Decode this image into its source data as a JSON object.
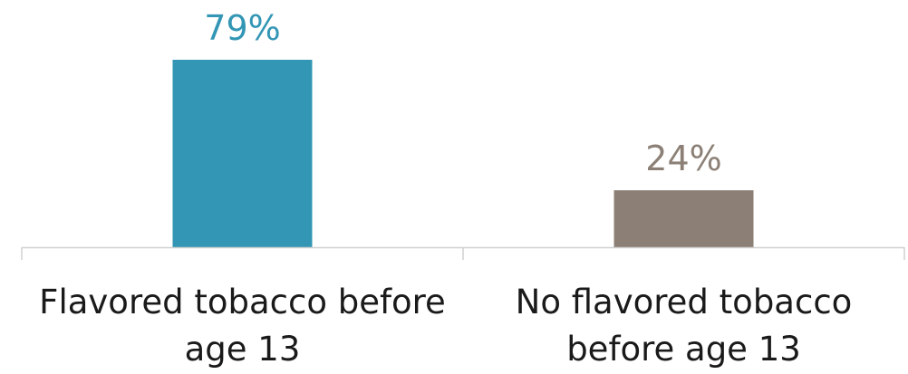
{
  "chart_data": {
    "type": "bar",
    "categories": [
      [
        "Flavored tobacco before",
        "age 13"
      ],
      [
        "No flavored tobacco",
        "before age 13"
      ]
    ],
    "values": [
      79,
      24
    ],
    "data_labels": [
      "79%",
      "24%"
    ],
    "colors": [
      "#3396b5",
      "#8c8076"
    ],
    "ylim": [
      0,
      79
    ],
    "grid": false,
    "legend": "none"
  }
}
